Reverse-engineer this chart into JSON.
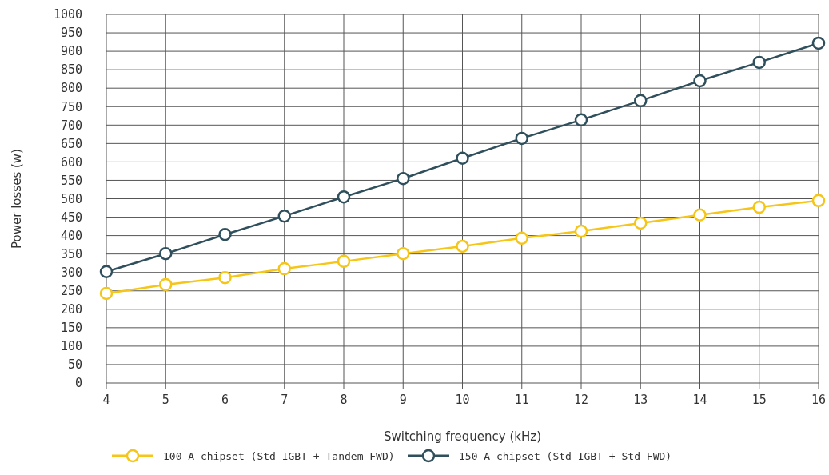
{
  "chart_data": {
    "type": "line",
    "xlabel": "Switching frequency (kHz)",
    "ylabel": "Power losses (w)",
    "x": [
      4,
      5,
      6,
      7,
      8,
      9,
      10,
      11,
      12,
      13,
      14,
      15,
      16
    ],
    "series": [
      {
        "name": "100 A chipset (Std IGBT + Tandem FWD)",
        "color": "#f5c518",
        "values": [
          243,
          267,
          286,
          310,
          330,
          351,
          371,
          393,
          412,
          434,
          456,
          477,
          495
        ]
      },
      {
        "name": "150 A chipset (Std IGBT + Std FWD)",
        "color": "#2f4f5c",
        "values": [
          302,
          351,
          403,
          453,
          505,
          555,
          610,
          664,
          714,
          766,
          820,
          870,
          922
        ]
      }
    ],
    "xlim": [
      4,
      16
    ],
    "xticks": [
      4,
      5,
      6,
      7,
      8,
      9,
      10,
      11,
      12,
      13,
      14,
      15,
      16
    ],
    "ylim": [
      0,
      1000
    ],
    "yticks": [
      0,
      50,
      100,
      150,
      200,
      250,
      300,
      350,
      400,
      450,
      500,
      550,
      600,
      650,
      700,
      750,
      800,
      850,
      900,
      950,
      1000
    ],
    "grid": true,
    "legend": "bottom",
    "marker": "circle",
    "line_style": "solid"
  }
}
